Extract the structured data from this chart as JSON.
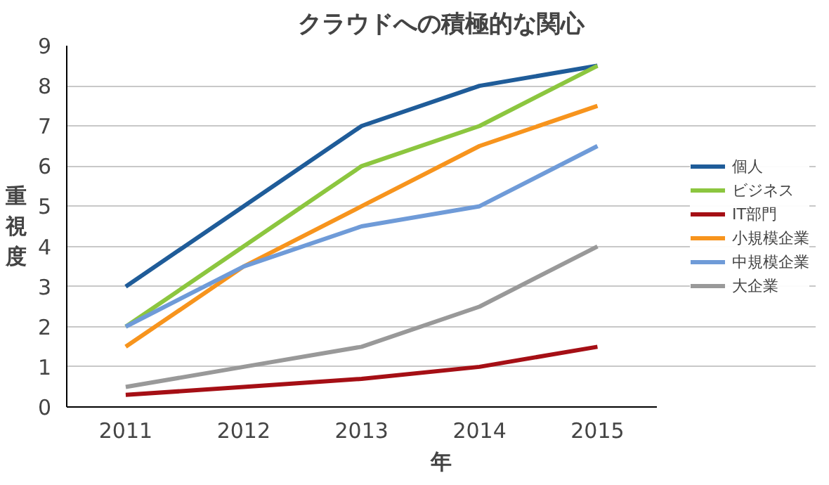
{
  "chart_data": {
    "type": "line",
    "title": "クラウドへの積極的な関心",
    "xlabel": "年",
    "ylabel": "重視度",
    "categories": [
      "2011",
      "2012",
      "2013",
      "2014",
      "2015"
    ],
    "series": [
      {
        "name": "個人",
        "color": "#1f5c99",
        "values": [
          3,
          5,
          7,
          8,
          8.5
        ]
      },
      {
        "name": "ビジネス",
        "color": "#8cc63f",
        "values": [
          2,
          4,
          6,
          7,
          8.5
        ]
      },
      {
        "name": "IT部門",
        "color": "#a50f15",
        "values": [
          0.3,
          0.5,
          0.7,
          1,
          1.5
        ]
      },
      {
        "name": "小規模企業",
        "color": "#f7941d",
        "values": [
          1.5,
          3.5,
          5,
          6.5,
          7.5
        ]
      },
      {
        "name": "中規模企業",
        "color": "#6f9bd8",
        "values": [
          2,
          3.5,
          4.5,
          5,
          6.5
        ]
      },
      {
        "name": "大企業",
        "color": "#999999",
        "values": [
          0.5,
          1,
          1.5,
          2.5,
          4
        ]
      }
    ],
    "ylim": [
      0,
      9
    ],
    "yticks": [
      0,
      1,
      2,
      3,
      4,
      5,
      6,
      7,
      8,
      9
    ],
    "grid": "y",
    "legend": "right",
    "marker": "none",
    "line_style": "solid"
  }
}
